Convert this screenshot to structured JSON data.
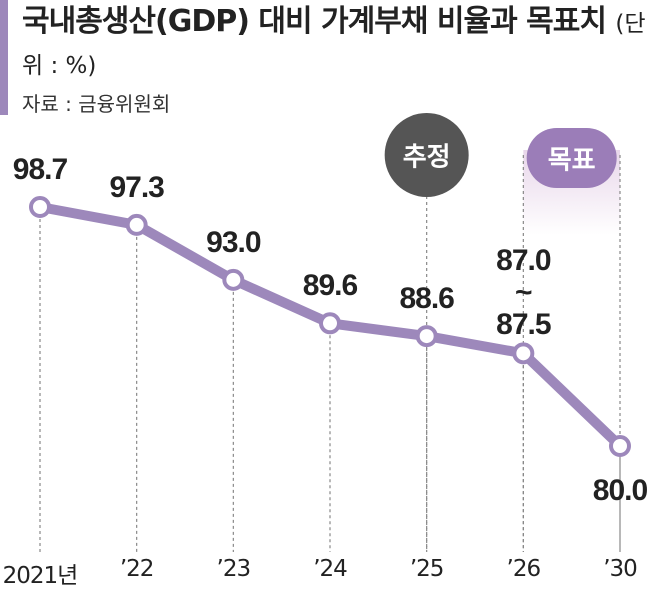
{
  "chart_data": {
    "type": "line",
    "title": "국내총생산(GDP) 대비 가계부채 비율과 목표치",
    "subtitle": "(단위 : %)",
    "source": "자료 : 금융위원회",
    "categories": [
      "2021년",
      "’22",
      "’23",
      "’24",
      "’25",
      "’26",
      "’30"
    ],
    "series": [
      {
        "color": "#9d88bb",
        "values": [
          98.7,
          97.3,
          93.0,
          89.6,
          88.6,
          87.25,
          80.0
        ],
        "value_labels": [
          "98.7",
          "97.3",
          "93.0",
          "89.6",
          "88.6",
          "87.0\n~\n87.5",
          "80.0"
        ]
      }
    ],
    "annotations": [
      {
        "text": "추정",
        "category": "’25",
        "color": "#555555"
      },
      {
        "text": "목표",
        "category": "’30",
        "color": "#9b7db8"
      }
    ]
  }
}
